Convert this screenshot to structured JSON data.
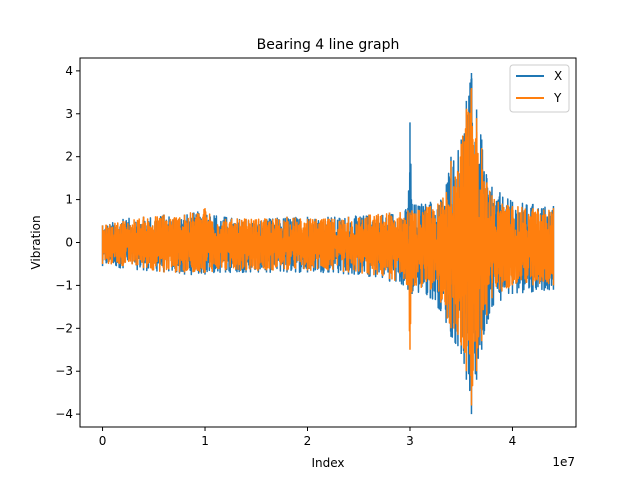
{
  "chart_data": {
    "type": "line",
    "title": "Bearing 4 line graph",
    "xlabel": "Index",
    "ylabel": "Vibration",
    "x_offset_label": "1e7",
    "xlim": [
      -2200000,
      46200000
    ],
    "ylim": [
      -4.3,
      4.3
    ],
    "xticks": [
      0,
      10000000,
      20000000,
      30000000,
      40000000
    ],
    "xtick_labels": [
      "0",
      "1",
      "2",
      "3",
      "4"
    ],
    "yticks": [
      -4,
      -3,
      -2,
      -1,
      0,
      1,
      2,
      3,
      4
    ],
    "ytick_labels": [
      "−4",
      "−3",
      "−2",
      "−1",
      "0",
      "1",
      "2",
      "3",
      "4"
    ],
    "grid": false,
    "legend_position": "upper right",
    "series": [
      {
        "name": "X",
        "color": "#1f77b4",
        "x": [
          0,
          2000000,
          4000000,
          6000000,
          8000000,
          10000000,
          12000000,
          14000000,
          16000000,
          18000000,
          20000000,
          22000000,
          24000000,
          26000000,
          28000000,
          29800000,
          30000000,
          30200000,
          32000000,
          33000000,
          34000000,
          35000000,
          35500000,
          36000000,
          36500000,
          37000000,
          37500000,
          38000000,
          40000000,
          42000000,
          44000000
        ],
        "upper": [
          0.4,
          0.55,
          0.6,
          0.65,
          0.65,
          0.75,
          0.6,
          0.55,
          0.55,
          0.6,
          0.6,
          0.6,
          0.6,
          0.65,
          0.7,
          0.8,
          2.8,
          0.9,
          0.95,
          1.0,
          2.0,
          2.4,
          3.3,
          3.95,
          3.1,
          2.4,
          1.5,
          1.3,
          0.95,
          0.9,
          0.85
        ],
        "lower": [
          -0.55,
          -0.6,
          -0.65,
          -0.7,
          -0.75,
          -0.75,
          -0.7,
          -0.7,
          -0.7,
          -0.7,
          -0.7,
          -0.7,
          -0.75,
          -0.8,
          -0.9,
          -1.1,
          -1.1,
          -1.2,
          -1.3,
          -1.6,
          -2.2,
          -2.6,
          -3.2,
          -4.0,
          -3.2,
          -2.5,
          -1.9,
          -1.5,
          -1.2,
          -1.15,
          -1.1
        ]
      },
      {
        "name": "Y",
        "color": "#ff7f0e",
        "x": [
          0,
          2000000,
          4000000,
          6000000,
          8000000,
          10000000,
          12000000,
          14000000,
          16000000,
          18000000,
          20000000,
          22000000,
          24000000,
          26000000,
          28000000,
          29800000,
          30000000,
          30200000,
          32000000,
          33000000,
          34000000,
          35000000,
          35500000,
          36000000,
          36500000,
          37000000,
          37500000,
          38000000,
          40000000,
          42000000,
          44000000
        ],
        "upper": [
          0.4,
          0.5,
          0.6,
          0.65,
          0.65,
          0.8,
          0.55,
          0.55,
          0.55,
          0.6,
          0.55,
          0.55,
          0.6,
          0.65,
          0.7,
          0.75,
          0.7,
          0.75,
          0.85,
          0.95,
          1.9,
          2.3,
          3.1,
          3.6,
          2.9,
          2.2,
          1.4,
          1.1,
          0.85,
          0.8,
          0.8
        ],
        "lower": [
          -0.5,
          -0.55,
          -0.6,
          -0.7,
          -0.7,
          -0.7,
          -0.65,
          -0.65,
          -0.65,
          -0.65,
          -0.65,
          -0.65,
          -0.7,
          -0.75,
          -0.85,
          -1.0,
          -2.5,
          -1.0,
          -1.1,
          -1.4,
          -2.0,
          -2.4,
          -3.0,
          -3.8,
          -3.0,
          -2.3,
          -1.7,
          -1.3,
          -1.0,
          -1.0,
          -1.0
        ]
      }
    ]
  }
}
